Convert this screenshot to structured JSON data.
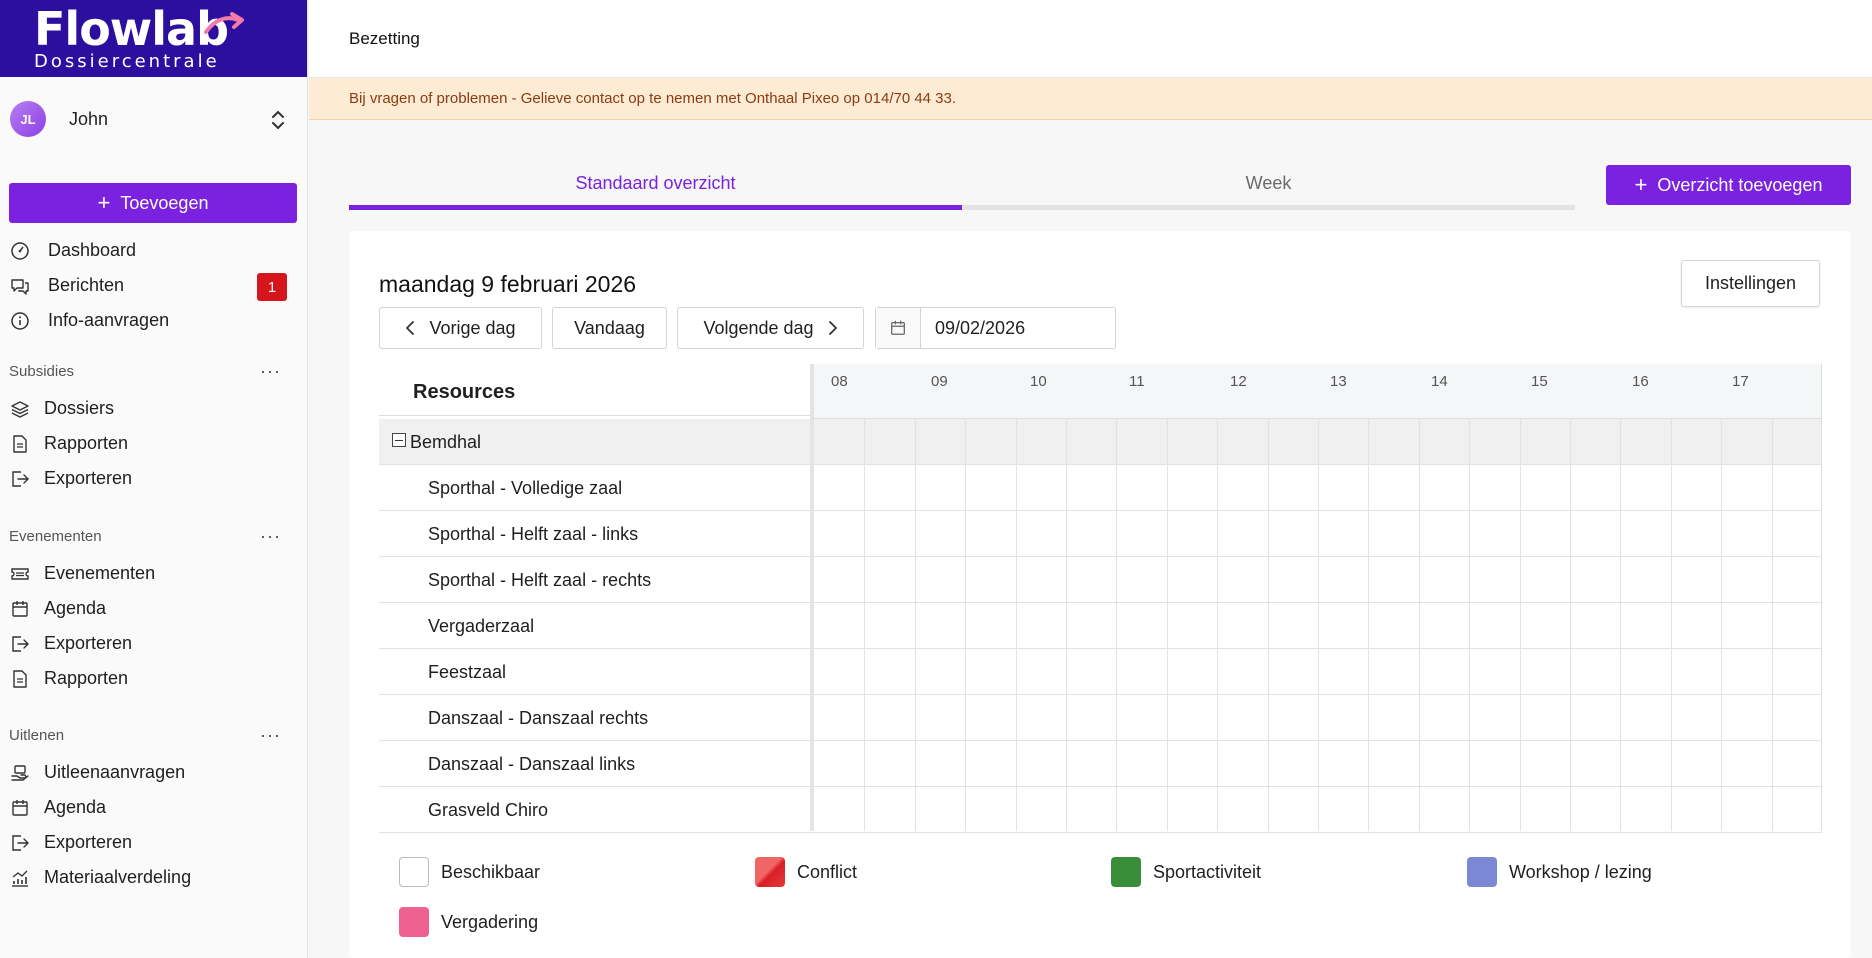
{
  "brand": {
    "name": "Flowlab",
    "subtitle": "Dossiercentrale",
    "color": "#2d0fa0"
  },
  "user": {
    "initials": "JL",
    "name": "John"
  },
  "sidebar": {
    "add_label": "Toevoegen",
    "main_items": [
      {
        "label": "Dashboard",
        "icon": "dashboard-icon"
      },
      {
        "label": "Berichten",
        "icon": "messages-icon",
        "badge": "1"
      },
      {
        "label": "Info-aanvragen",
        "icon": "info-icon"
      }
    ],
    "sections": [
      {
        "title": "Subsidies",
        "items": [
          {
            "label": "Dossiers",
            "icon": "layers-icon"
          },
          {
            "label": "Rapporten",
            "icon": "document-icon"
          },
          {
            "label": "Exporteren",
            "icon": "export-icon"
          }
        ]
      },
      {
        "title": "Evenementen",
        "items": [
          {
            "label": "Evenementen",
            "icon": "ticket-icon"
          },
          {
            "label": "Agenda",
            "icon": "calendar-icon"
          },
          {
            "label": "Exporteren",
            "icon": "export-icon"
          },
          {
            "label": "Rapporten",
            "icon": "document-icon"
          }
        ]
      },
      {
        "title": "Uitlenen",
        "items": [
          {
            "label": "Uitleenaanvragen",
            "icon": "hand-icon"
          },
          {
            "label": "Agenda",
            "icon": "calendar-icon"
          },
          {
            "label": "Exporteren",
            "icon": "export-icon"
          },
          {
            "label": "Materiaalverdeling",
            "icon": "chart-icon"
          }
        ]
      }
    ]
  },
  "header": {
    "title": "Bezetting"
  },
  "notice": "Bij vragen of problemen - Gelieve contact op te nemen met Onthaal Pixeo op 014/70 44 33.",
  "tabs": [
    {
      "label": "Standaard overzicht",
      "active": true
    },
    {
      "label": "Week",
      "active": false
    }
  ],
  "overview_button": "Overzicht toevoegen",
  "schedule": {
    "date_title": "maandag 9 februari 2026",
    "settings_label": "Instellingen",
    "prev_label": "Vorige dag",
    "today_label": "Vandaag",
    "next_label": "Volgende dag",
    "date_value": "09/02/2026",
    "resources_header": "Resources",
    "hours": [
      "08",
      "09",
      "10",
      "11",
      "12",
      "13",
      "14",
      "15",
      "16",
      "17"
    ],
    "group": "Bemdhal",
    "resources": [
      "Sporthal - Volledige zaal",
      "Sporthal - Helft zaal - links",
      "Sporthal - Helft zaal - rechts",
      "Vergaderzaal",
      "Feestzaal",
      "Danszaal - Danszaal rechts",
      "Danszaal - Danszaal links",
      "Grasveld Chiro"
    ]
  },
  "legend": [
    {
      "label": "Beschikbaar",
      "color": "#ffffff"
    },
    {
      "label": "Conflict",
      "color": "#e5383b"
    },
    {
      "label": "Sportactiviteit",
      "color": "#3a8e3a"
    },
    {
      "label": "Workshop / lezing",
      "color": "#7b88d4"
    },
    {
      "label": "Vergadering",
      "color": "#ee6292"
    }
  ],
  "colors": {
    "accent": "#7a22e0",
    "badge": "#d6141c",
    "notice_bg": "#fdebd3"
  }
}
